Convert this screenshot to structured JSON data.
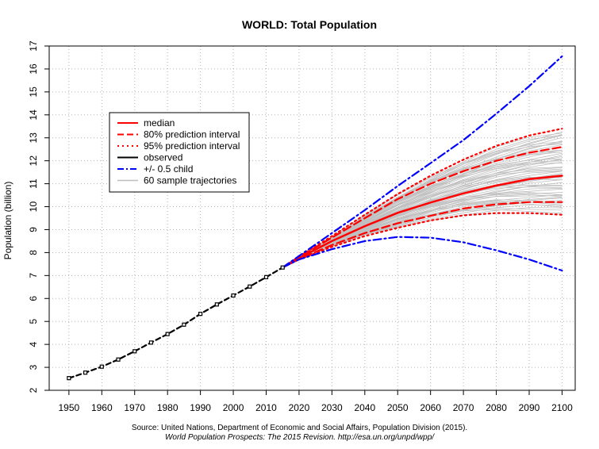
{
  "chart_data": {
    "type": "line",
    "title": "WORLD: Total Population",
    "ylabel": "Population (billion)",
    "xlabel": "",
    "xlim": [
      1944,
      2104
    ],
    "ylim": [
      2,
      17
    ],
    "x_ticks": [
      1950,
      1960,
      1970,
      1980,
      1990,
      2000,
      2010,
      2020,
      2030,
      2040,
      2050,
      2060,
      2070,
      2080,
      2090,
      2100
    ],
    "y_ticks": [
      2,
      3,
      4,
      5,
      6,
      7,
      8,
      9,
      10,
      11,
      12,
      13,
      14,
      15,
      16,
      17
    ],
    "grid": true,
    "legend_position": "top-left",
    "legend": [
      {
        "label": "median",
        "color": "#ff0000",
        "style": "solid"
      },
      {
        "label": "80% prediction interval",
        "color": "#ff0000",
        "style": "dashed"
      },
      {
        "label": "95% prediction interval",
        "color": "#ff0000",
        "style": "dotted"
      },
      {
        "label": "observed",
        "color": "#000000",
        "style": "solid"
      },
      {
        "label": "+/- 0.5 child",
        "color": "#0000ff",
        "style": "dashdot"
      },
      {
        "label": "60 sample trajectories",
        "color": "#bebebe",
        "style": "solid"
      }
    ],
    "series": [
      {
        "name": "observed",
        "color": "#000000",
        "style": "dashed-points",
        "x": [
          1950,
          1955,
          1960,
          1965,
          1970,
          1975,
          1980,
          1985,
          1990,
          1995,
          2000,
          2005,
          2010,
          2015
        ],
        "y": [
          2.53,
          2.77,
          3.03,
          3.34,
          3.7,
          4.08,
          4.45,
          4.86,
          5.33,
          5.74,
          6.13,
          6.52,
          6.93,
          7.35
        ]
      },
      {
        "name": "median",
        "color": "#ff0000",
        "style": "solid",
        "x": [
          2015,
          2020,
          2030,
          2040,
          2050,
          2060,
          2070,
          2080,
          2090,
          2100
        ],
        "y": [
          7.35,
          7.76,
          8.5,
          9.15,
          9.73,
          10.18,
          10.58,
          10.92,
          11.2,
          11.35
        ]
      },
      {
        "name": "80% prediction interval",
        "color": "#ff0000",
        "style": "dashed",
        "x": [
          2015,
          2020,
          2030,
          2040,
          2050,
          2060,
          2070,
          2080,
          2090,
          2100
        ],
        "y": [
          7.35,
          7.8,
          8.65,
          9.5,
          10.33,
          11.0,
          11.55,
          12.0,
          12.35,
          12.6
        ]
      },
      {
        "name": "80% prediction interval lower",
        "color": "#ff0000",
        "style": "dashed",
        "x": [
          2015,
          2020,
          2030,
          2040,
          2050,
          2060,
          2070,
          2080,
          2090,
          2100
        ],
        "y": [
          7.35,
          7.72,
          8.33,
          8.85,
          9.28,
          9.6,
          9.92,
          10.1,
          10.2,
          10.2
        ]
      },
      {
        "name": "95% prediction interval",
        "color": "#ff0000",
        "style": "dotted",
        "x": [
          2015,
          2020,
          2030,
          2040,
          2050,
          2060,
          2070,
          2080,
          2090,
          2100
        ],
        "y": [
          7.35,
          7.82,
          8.72,
          9.65,
          10.55,
          11.35,
          12.05,
          12.65,
          13.1,
          13.4
        ]
      },
      {
        "name": "95% prediction interval lower",
        "color": "#ff0000",
        "style": "dotted",
        "x": [
          2015,
          2020,
          2030,
          2040,
          2050,
          2060,
          2070,
          2080,
          2090,
          2100
        ],
        "y": [
          7.35,
          7.7,
          8.25,
          8.72,
          9.08,
          9.4,
          9.62,
          9.72,
          9.72,
          9.65
        ]
      },
      {
        "name": "+/- 0.5 child",
        "color": "#0000ff",
        "style": "dashdot",
        "x": [
          2015,
          2020,
          2030,
          2040,
          2050,
          2060,
          2070,
          2080,
          2090,
          2100
        ],
        "y": [
          7.35,
          7.85,
          8.85,
          9.85,
          10.9,
          11.9,
          12.9,
          14.05,
          15.25,
          16.55
        ]
      },
      {
        "name": "+/- 0.5 child lower",
        "color": "#0000ff",
        "style": "dashdot",
        "x": [
          2015,
          2020,
          2030,
          2040,
          2050,
          2060,
          2070,
          2080,
          2090,
          2100
        ],
        "y": [
          7.35,
          7.7,
          8.15,
          8.5,
          8.68,
          8.65,
          8.45,
          8.1,
          7.7,
          7.22
        ]
      }
    ],
    "sample_trajectories_count": 60,
    "sample_trajectories_range_2100": [
      9.7,
      13.3
    ]
  },
  "source": {
    "line1": "Source: United Nations, Department of Economic and Social Affairs, Population Division (2015).",
    "line2": "World Population Prospects: The 2015 Revision. http://esa.un.org/unpd/wpp/"
  }
}
